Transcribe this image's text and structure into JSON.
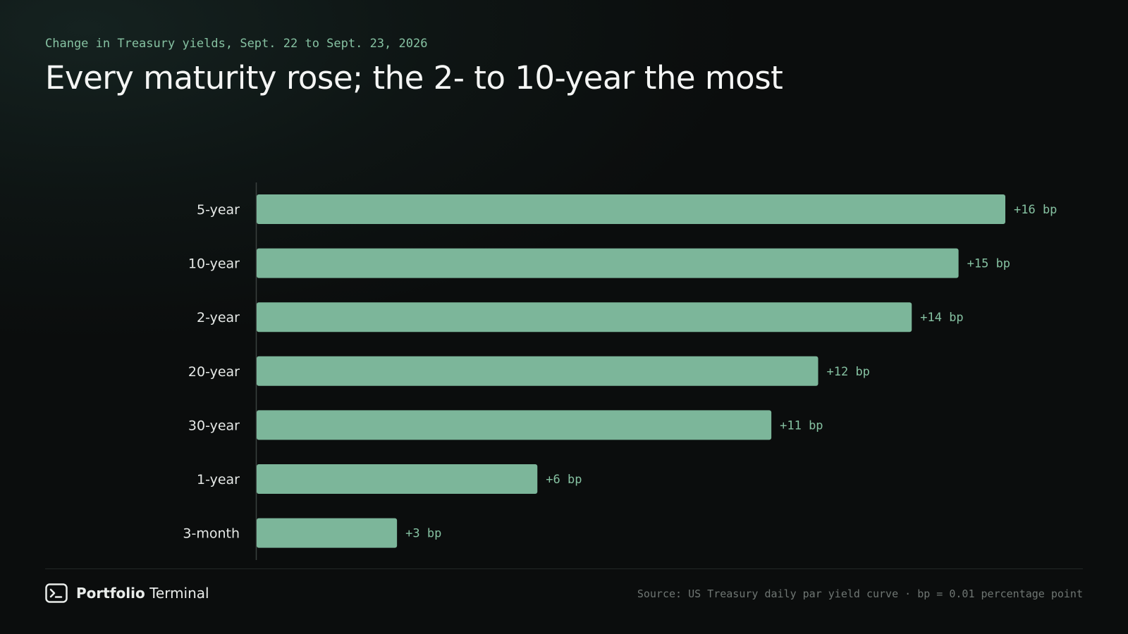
{
  "header": {
    "kicker": "Change in Treasury yields, Sept. 22 to Sept. 23, 2026",
    "title": "Every maturity rose; the 2- to 10-year the most"
  },
  "chart_data": {
    "type": "bar",
    "orientation": "horizontal",
    "title": "Every maturity rose; the 2- to 10-year the most",
    "subtitle": "Change in Treasury yields, Sept. 22 to Sept. 23, 2026",
    "xlabel": "",
    "ylabel": "",
    "categories": [
      "5-year",
      "10-year",
      "2-year",
      "20-year",
      "30-year",
      "1-year",
      "3-month"
    ],
    "values": [
      16,
      15,
      14,
      12,
      11,
      6,
      3
    ],
    "data_labels": [
      "+16 bp",
      "+15 bp",
      "+14 bp",
      "+12 bp",
      "+11 bp",
      "+6 bp",
      "+3 bp"
    ],
    "xlim": [
      0,
      16
    ],
    "grid": false,
    "legend": "none",
    "colors": {
      "bar": "#7cb69a",
      "value_label": "#86c2a2",
      "category_label": "#e6e9e7",
      "axis": "#3a403e"
    }
  },
  "footer": {
    "brand_bold": "Portfolio",
    "brand_regular": "Terminal",
    "brand_icon": "terminal-prompt-icon",
    "source": "Source: US Treasury daily par yield curve · bp = 0.01 percentage point"
  }
}
